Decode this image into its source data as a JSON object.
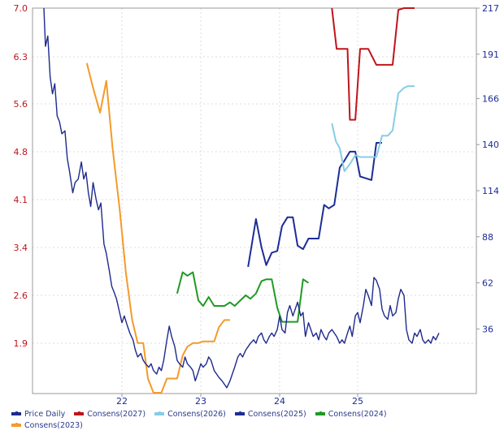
{
  "chart_data": {
    "type": "line",
    "title": "",
    "xlabel": "",
    "ylabel_left": "",
    "ylabel_right": "",
    "x_ticks": [
      "22",
      "23",
      "24",
      "25"
    ],
    "y_left_ticks": [
      "7.0",
      "6.3",
      "5.6",
      "4.8",
      "4.1",
      "3.4",
      "2.6",
      "1.9"
    ],
    "y_right_ticks": [
      "217",
      "191",
      "166",
      "140",
      "114",
      "88",
      "62",
      "36"
    ],
    "y_left_range": [
      1.0,
      7.0
    ],
    "y_right_range": [
      0,
      217
    ],
    "colors": {
      "price": "#1e2a8c",
      "cons2027": "#c0141c",
      "cons2026": "#87cde6",
      "cons2025": "#1c2d96",
      "cons2024": "#1f9a24",
      "cons2023": "#f59a2a",
      "axis_left": "#c0141c",
      "axis_right": "#1c2d96"
    },
    "series": [
      {
        "name": "Price Daily",
        "axis": "left",
        "points": [
          [
            2021.0,
            7.0
          ],
          [
            2021.02,
            6.45
          ],
          [
            2021.05,
            6.6
          ],
          [
            2021.08,
            6.0
          ],
          [
            2021.11,
            5.75
          ],
          [
            2021.14,
            5.9
          ],
          [
            2021.17,
            5.4
          ],
          [
            2021.2,
            5.3
          ],
          [
            2021.23,
            5.1
          ],
          [
            2021.27,
            5.15
          ],
          [
            2021.3,
            4.7
          ],
          [
            2021.33,
            4.5
          ],
          [
            2021.37,
            4.2
          ],
          [
            2021.4,
            4.35
          ],
          [
            2021.44,
            4.4
          ],
          [
            2021.48,
            4.65
          ],
          [
            2021.51,
            4.4
          ],
          [
            2021.54,
            4.5
          ],
          [
            2021.57,
            4.2
          ],
          [
            2021.6,
            4.0
          ],
          [
            2021.63,
            4.35
          ],
          [
            2021.67,
            4.1
          ],
          [
            2021.7,
            3.95
          ],
          [
            2021.73,
            4.05
          ],
          [
            2021.77,
            3.45
          ],
          [
            2021.8,
            3.3
          ],
          [
            2021.84,
            3.0
          ],
          [
            2021.87,
            2.75
          ],
          [
            2021.9,
            2.65
          ],
          [
            2021.93,
            2.55
          ],
          [
            2021.97,
            2.35
          ],
          [
            2022.0,
            2.2
          ],
          [
            2022.03,
            2.3
          ],
          [
            2022.07,
            2.15
          ],
          [
            2022.1,
            2.05
          ],
          [
            2022.14,
            1.95
          ],
          [
            2022.17,
            1.8
          ],
          [
            2022.2,
            1.7
          ],
          [
            2022.24,
            1.75
          ],
          [
            2022.27,
            1.65
          ],
          [
            2022.3,
            1.6
          ],
          [
            2022.34,
            1.55
          ],
          [
            2022.37,
            1.6
          ],
          [
            2022.4,
            1.5
          ],
          [
            2022.44,
            1.45
          ],
          [
            2022.47,
            1.55
          ],
          [
            2022.5,
            1.5
          ],
          [
            2022.53,
            1.65
          ],
          [
            2022.57,
            1.95
          ],
          [
            2022.6,
            2.15
          ],
          [
            2022.63,
            2.0
          ],
          [
            2022.67,
            1.85
          ],
          [
            2022.7,
            1.65
          ],
          [
            2022.73,
            1.6
          ],
          [
            2022.77,
            1.55
          ],
          [
            2022.8,
            1.7
          ],
          [
            2022.83,
            1.6
          ],
          [
            2022.87,
            1.55
          ],
          [
            2022.9,
            1.5
          ],
          [
            2022.93,
            1.35
          ],
          [
            2022.96,
            1.45
          ],
          [
            2023.0,
            1.6
          ],
          [
            2023.03,
            1.55
          ],
          [
            2023.07,
            1.6
          ],
          [
            2023.1,
            1.7
          ],
          [
            2023.13,
            1.65
          ],
          [
            2023.17,
            1.5
          ],
          [
            2023.2,
            1.45
          ],
          [
            2023.23,
            1.4
          ],
          [
            2023.27,
            1.35
          ],
          [
            2023.3,
            1.3
          ],
          [
            2023.33,
            1.25
          ],
          [
            2023.37,
            1.35
          ],
          [
            2023.4,
            1.45
          ],
          [
            2023.43,
            1.55
          ],
          [
            2023.47,
            1.7
          ],
          [
            2023.5,
            1.75
          ],
          [
            2023.53,
            1.7
          ],
          [
            2023.57,
            1.8
          ],
          [
            2023.6,
            1.85
          ],
          [
            2023.63,
            1.9
          ],
          [
            2023.67,
            1.95
          ],
          [
            2023.7,
            1.9
          ],
          [
            2023.73,
            2.0
          ],
          [
            2023.77,
            2.05
          ],
          [
            2023.8,
            1.95
          ],
          [
            2023.83,
            1.9
          ],
          [
            2023.87,
            2.0
          ],
          [
            2023.9,
            2.05
          ],
          [
            2023.93,
            2.0
          ],
          [
            2023.97,
            2.1
          ],
          [
            2024.0,
            2.3
          ],
          [
            2024.03,
            2.1
          ],
          [
            2024.07,
            2.05
          ],
          [
            2024.1,
            2.35
          ],
          [
            2024.13,
            2.45
          ],
          [
            2024.17,
            2.3
          ],
          [
            2024.2,
            2.4
          ],
          [
            2024.23,
            2.5
          ],
          [
            2024.27,
            2.3
          ],
          [
            2024.3,
            2.35
          ],
          [
            2024.33,
            2.0
          ],
          [
            2024.37,
            2.2
          ],
          [
            2024.4,
            2.1
          ],
          [
            2024.43,
            2.0
          ],
          [
            2024.47,
            2.05
          ],
          [
            2024.5,
            1.95
          ],
          [
            2024.53,
            2.1
          ],
          [
            2024.57,
            2.0
          ],
          [
            2024.6,
            1.95
          ],
          [
            2024.63,
            2.05
          ],
          [
            2024.67,
            2.1
          ],
          [
            2024.7,
            2.05
          ],
          [
            2024.73,
            2.0
          ],
          [
            2024.77,
            1.9
          ],
          [
            2024.8,
            1.95
          ],
          [
            2024.83,
            1.9
          ],
          [
            2024.87,
            2.05
          ],
          [
            2024.9,
            2.15
          ],
          [
            2024.93,
            2.0
          ],
          [
            2024.97,
            2.3
          ],
          [
            2025.0,
            2.35
          ],
          [
            2025.03,
            2.2
          ],
          [
            2025.07,
            2.45
          ],
          [
            2025.1,
            2.7
          ],
          [
            2025.13,
            2.6
          ],
          [
            2025.17,
            2.45
          ],
          [
            2025.2,
            2.9
          ],
          [
            2025.23,
            2.85
          ],
          [
            2025.27,
            2.7
          ],
          [
            2025.3,
            2.4
          ],
          [
            2025.33,
            2.3
          ],
          [
            2025.37,
            2.25
          ],
          [
            2025.4,
            2.45
          ],
          [
            2025.43,
            2.3
          ],
          [
            2025.47,
            2.35
          ],
          [
            2025.5,
            2.55
          ],
          [
            2025.53,
            2.7
          ],
          [
            2025.57,
            2.6
          ],
          [
            2025.6,
            2.1
          ],
          [
            2025.63,
            1.95
          ],
          [
            2025.67,
            1.9
          ],
          [
            2025.7,
            2.05
          ],
          [
            2025.73,
            2.0
          ],
          [
            2025.77,
            2.1
          ],
          [
            2025.8,
            1.95
          ],
          [
            2025.83,
            1.9
          ],
          [
            2025.87,
            1.95
          ],
          [
            2025.9,
            1.9
          ],
          [
            2025.93,
            2.0
          ],
          [
            2025.96,
            1.95
          ],
          [
            2026.0,
            2.05
          ]
        ]
      },
      {
        "name": "Consens(2027)",
        "axis": "right",
        "points": [
          [
            2024.67,
            217
          ],
          [
            2024.73,
            194
          ],
          [
            2024.8,
            194
          ],
          [
            2024.87,
            194
          ],
          [
            2024.9,
            154
          ],
          [
            2024.97,
            154
          ],
          [
            2025.03,
            194
          ],
          [
            2025.13,
            194
          ],
          [
            2025.23,
            185
          ],
          [
            2025.33,
            185
          ],
          [
            2025.43,
            185
          ],
          [
            2025.5,
            216
          ],
          [
            2025.57,
            217
          ],
          [
            2025.65,
            217
          ],
          [
            2025.7,
            217
          ]
        ]
      },
      {
        "name": "Consens(2026)",
        "axis": "right",
        "points": [
          [
            2024.67,
            152
          ],
          [
            2024.72,
            142
          ],
          [
            2024.77,
            138
          ],
          [
            2024.83,
            125
          ],
          [
            2024.9,
            129
          ],
          [
            2024.97,
            134
          ],
          [
            2025.03,
            133
          ],
          [
            2025.1,
            133
          ],
          [
            2025.17,
            133
          ],
          [
            2025.23,
            133
          ],
          [
            2025.3,
            145
          ],
          [
            2025.37,
            145
          ],
          [
            2025.43,
            148
          ],
          [
            2025.5,
            169
          ],
          [
            2025.57,
            172
          ],
          [
            2025.62,
            173
          ],
          [
            2025.7,
            173
          ]
        ]
      },
      {
        "name": "Consens(2025)",
        "axis": "right",
        "points": [
          [
            2023.6,
            71
          ],
          [
            2023.7,
            98
          ],
          [
            2023.77,
            82
          ],
          [
            2023.83,
            72
          ],
          [
            2023.9,
            79
          ],
          [
            2023.97,
            80
          ],
          [
            2024.03,
            94
          ],
          [
            2024.1,
            99
          ],
          [
            2024.17,
            99
          ],
          [
            2024.23,
            83
          ],
          [
            2024.3,
            81
          ],
          [
            2024.37,
            87
          ],
          [
            2024.43,
            87
          ],
          [
            2024.5,
            87
          ],
          [
            2024.57,
            106
          ],
          [
            2024.63,
            104
          ],
          [
            2024.7,
            106
          ],
          [
            2024.77,
            127
          ],
          [
            2024.83,
            131
          ],
          [
            2024.9,
            136
          ],
          [
            2024.97,
            136
          ],
          [
            2025.03,
            122
          ],
          [
            2025.1,
            121
          ],
          [
            2025.17,
            120
          ],
          [
            2025.23,
            141
          ],
          [
            2025.3,
            141
          ]
        ]
      },
      {
        "name": "Consens(2024)",
        "axis": "right",
        "points": [
          [
            2022.7,
            56
          ],
          [
            2022.77,
            68
          ],
          [
            2022.83,
            66
          ],
          [
            2022.9,
            68
          ],
          [
            2022.97,
            52
          ],
          [
            2023.03,
            49
          ],
          [
            2023.1,
            54
          ],
          [
            2023.17,
            49
          ],
          [
            2023.23,
            49
          ],
          [
            2023.3,
            49
          ],
          [
            2023.37,
            51
          ],
          [
            2023.43,
            49
          ],
          [
            2023.5,
            52
          ],
          [
            2023.57,
            55
          ],
          [
            2023.63,
            53
          ],
          [
            2023.7,
            56
          ],
          [
            2023.77,
            63
          ],
          [
            2023.83,
            64
          ],
          [
            2023.9,
            64
          ],
          [
            2023.97,
            48
          ],
          [
            2024.03,
            40
          ],
          [
            2024.1,
            40
          ],
          [
            2024.17,
            40
          ],
          [
            2024.23,
            40
          ],
          [
            2024.3,
            64
          ],
          [
            2024.37,
            62
          ]
        ]
      },
      {
        "name": "Consens(2023)",
        "axis": "right",
        "points": [
          [
            2021.55,
            186
          ],
          [
            2021.63,
            172
          ],
          [
            2021.72,
            158
          ],
          [
            2021.8,
            176
          ],
          [
            2021.88,
            138
          ],
          [
            2021.97,
            104
          ],
          [
            2022.05,
            68
          ],
          [
            2022.13,
            41
          ],
          [
            2022.2,
            28
          ],
          [
            2022.27,
            28
          ],
          [
            2022.33,
            8
          ],
          [
            2022.4,
            0
          ],
          [
            2022.5,
            0
          ],
          [
            2022.57,
            8
          ],
          [
            2022.63,
            8
          ],
          [
            2022.7,
            8
          ],
          [
            2022.77,
            21
          ],
          [
            2022.83,
            26
          ],
          [
            2022.9,
            28
          ],
          [
            2022.97,
            28
          ],
          [
            2023.03,
            29
          ],
          [
            2023.1,
            29
          ],
          [
            2023.17,
            29
          ],
          [
            2023.23,
            37
          ],
          [
            2023.3,
            41
          ],
          [
            2023.37,
            41
          ]
        ]
      }
    ]
  }
}
